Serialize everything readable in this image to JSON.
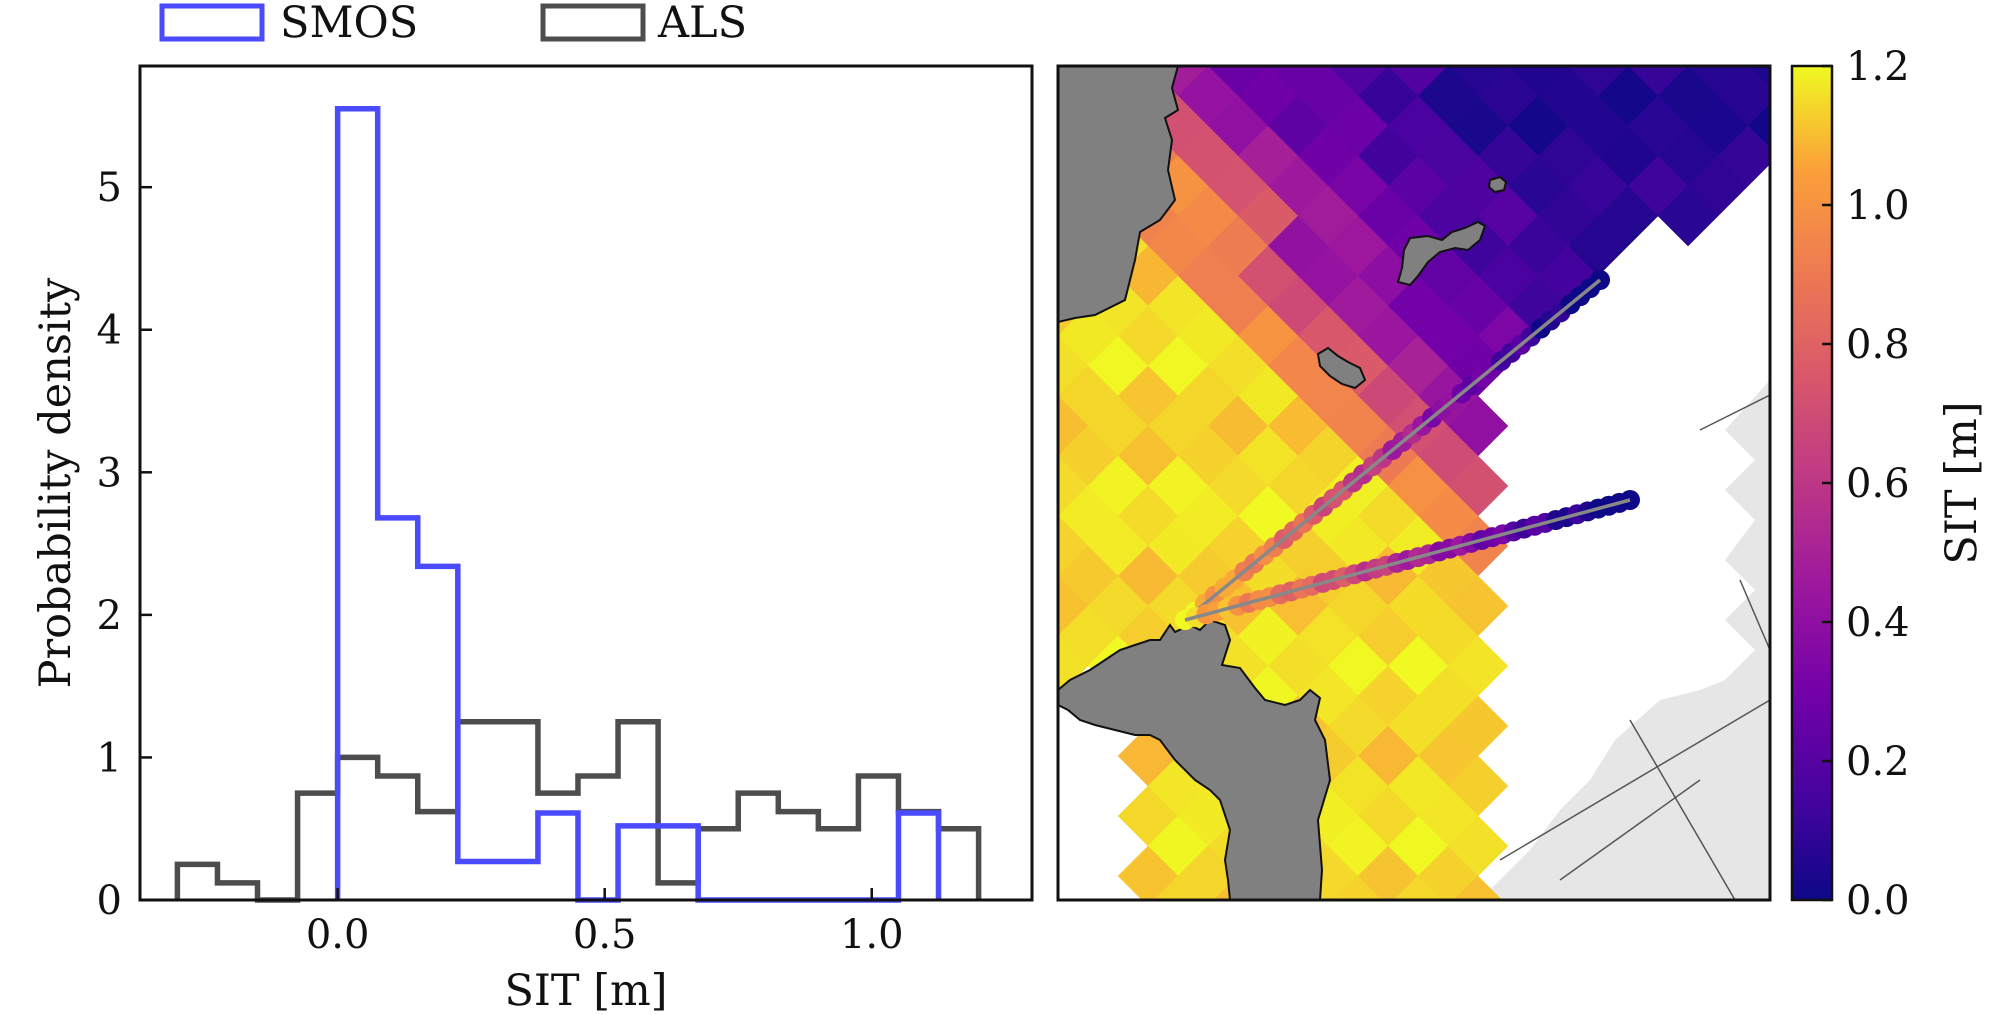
{
  "chart_data": [
    {
      "type": "histogram",
      "legend": {
        "placement": "top-left, above axes",
        "entries": [
          {
            "name": "SMOS",
            "color": "#4a4aff"
          },
          {
            "name": "ALS",
            "color": "#4d4d4d"
          }
        ]
      },
      "xlabel": "SIT [m]",
      "ylabel": "Probability density",
      "xlim": [
        -0.37,
        1.3
      ],
      "ylim": [
        0,
        5.85
      ],
      "xticks": [
        0.0,
        0.5,
        1.0
      ],
      "xtick_labels": [
        "0.0",
        "0.5",
        "1.0"
      ],
      "yticks": [
        0,
        1,
        2,
        3,
        4,
        5
      ],
      "ytick_labels": [
        "0",
        "1",
        "2",
        "3",
        "4",
        "5"
      ],
      "grid": false,
      "series": [
        {
          "name": "SMOS",
          "color": "#4a4aff",
          "edges": [
            0.0,
            0.075,
            0.15,
            0.225,
            0.375,
            0.45,
            0.525,
            0.675,
            1.05,
            1.125
          ],
          "values": [
            5.55,
            2.68,
            2.34,
            0.27,
            0.61,
            0.0,
            0.52,
            0.0,
            0.61
          ]
        },
        {
          "name": "ALS",
          "color": "#4d4d4d",
          "edges": [
            -0.3,
            -0.225,
            -0.15,
            -0.075,
            0.0,
            0.075,
            0.15,
            0.225,
            0.375,
            0.45,
            0.525,
            0.6,
            0.675,
            0.75,
            0.825,
            0.9,
            0.975,
            1.05,
            1.125,
            1.2
          ],
          "values": [
            0.25,
            0.12,
            0.0,
            0.75,
            1.0,
            0.87,
            0.62,
            1.25,
            0.75,
            0.87,
            1.25,
            0.12,
            0.5,
            0.75,
            0.62,
            0.5,
            0.87,
            0.62,
            0.5
          ]
        }
      ]
    },
    {
      "type": "heatmap",
      "description": "map",
      "colorbar": {
        "label": "SIT [m]",
        "colormap": "plasma",
        "range": [
          0.0,
          1.2
        ],
        "ticks": [
          0.0,
          0.2,
          0.4,
          0.6,
          0.8,
          1.0,
          1.2
        ],
        "tick_labels": [
          "0.0",
          "0.2",
          "0.4",
          "0.6",
          "0.8",
          "1.0",
          "1.2"
        ]
      },
      "colors": {
        "land": "#808080",
        "no_data": "#e6e6e6",
        "track_line": "#888888"
      }
    }
  ]
}
